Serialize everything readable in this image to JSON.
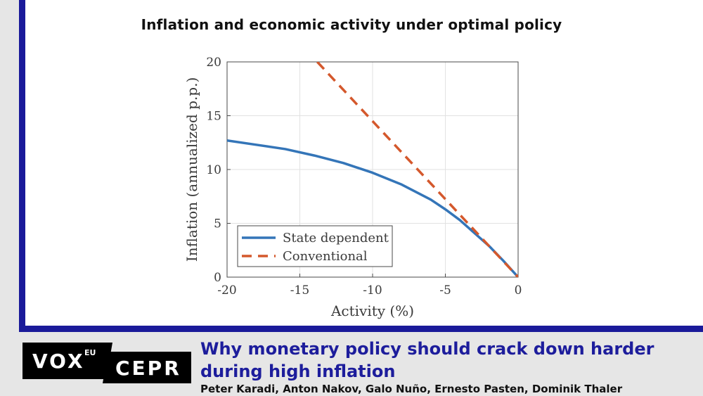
{
  "chart_data": {
    "type": "line",
    "title": "Inflation and economic activity under optimal policy",
    "xlabel": "Activity (%)",
    "ylabel": "Inflation (annualized p.p.)",
    "xlim": [
      -20,
      0
    ],
    "ylim": [
      0,
      20
    ],
    "xticks": [
      "-20",
      "-15",
      "-10",
      "-5",
      "0"
    ],
    "yticks": [
      "0",
      "5",
      "10",
      "15",
      "20"
    ],
    "grid": true,
    "legend_position": "bottom-left",
    "series": [
      {
        "name": "State dependent",
        "style": "solid",
        "color": "#3475b8",
        "x": [
          -20,
          -18,
          -16,
          -14,
          -12,
          -10,
          -8,
          -6,
          -5,
          -4,
          -3,
          -2,
          -1,
          0
        ],
        "y": [
          12.7,
          12.3,
          11.9,
          11.3,
          10.6,
          9.7,
          8.6,
          7.2,
          6.3,
          5.3,
          4.1,
          2.9,
          1.5,
          0
        ]
      },
      {
        "name": "Conventional",
        "style": "dashed",
        "color": "#d4582c",
        "x": [
          -13.8,
          0
        ],
        "y": [
          20,
          0
        ]
      }
    ]
  },
  "footer": {
    "logo_vox": "VOX",
    "logo_eu": "EU",
    "logo_cepr": "CEPR",
    "article_title": "Why monetary policy should crack down harder during high inflation",
    "authors": "Peter Karadi, Anton Nakov, Galo Nuño, Ernesto Pasten, Dominik Thaler"
  }
}
